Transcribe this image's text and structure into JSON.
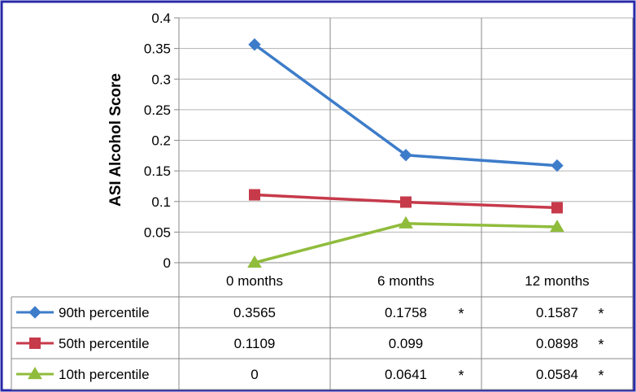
{
  "chart_data": {
    "type": "line",
    "title": "",
    "xlabel": "",
    "ylabel": "ASI Alcohol Score",
    "categories": [
      "0 months",
      "6 months",
      "12 months"
    ],
    "ylim": [
      0,
      0.4
    ],
    "yticks": [
      "0",
      "0.05",
      "0.1",
      "0.15",
      "0.2",
      "0.25",
      "0.3",
      "0.35",
      "0.4"
    ],
    "grid": true,
    "legend_position": "bottom (data table)",
    "series": [
      {
        "name": "90th percentile",
        "color": "#3d7cc9",
        "marker": "diamond",
        "values": [
          0.3565,
          0.1758,
          0.1587
        ],
        "labels": [
          "0.3565",
          "0.1758",
          "0.1587"
        ],
        "stars": [
          "",
          "*",
          "*"
        ]
      },
      {
        "name": "50th percentile",
        "color": "#c63a4a",
        "marker": "square",
        "values": [
          0.1109,
          0.099,
          0.0898
        ],
        "labels": [
          "0.1109",
          "0.099",
          "0.0898"
        ],
        "stars": [
          "",
          "",
          "*"
        ]
      },
      {
        "name": "10th percentile",
        "color": "#90bc3c",
        "marker": "triangle",
        "values": [
          0,
          0.0641,
          0.0584
        ],
        "labels": [
          "0",
          "0.0641",
          "0.0584"
        ],
        "stars": [
          "",
          "*",
          "*"
        ]
      }
    ]
  }
}
